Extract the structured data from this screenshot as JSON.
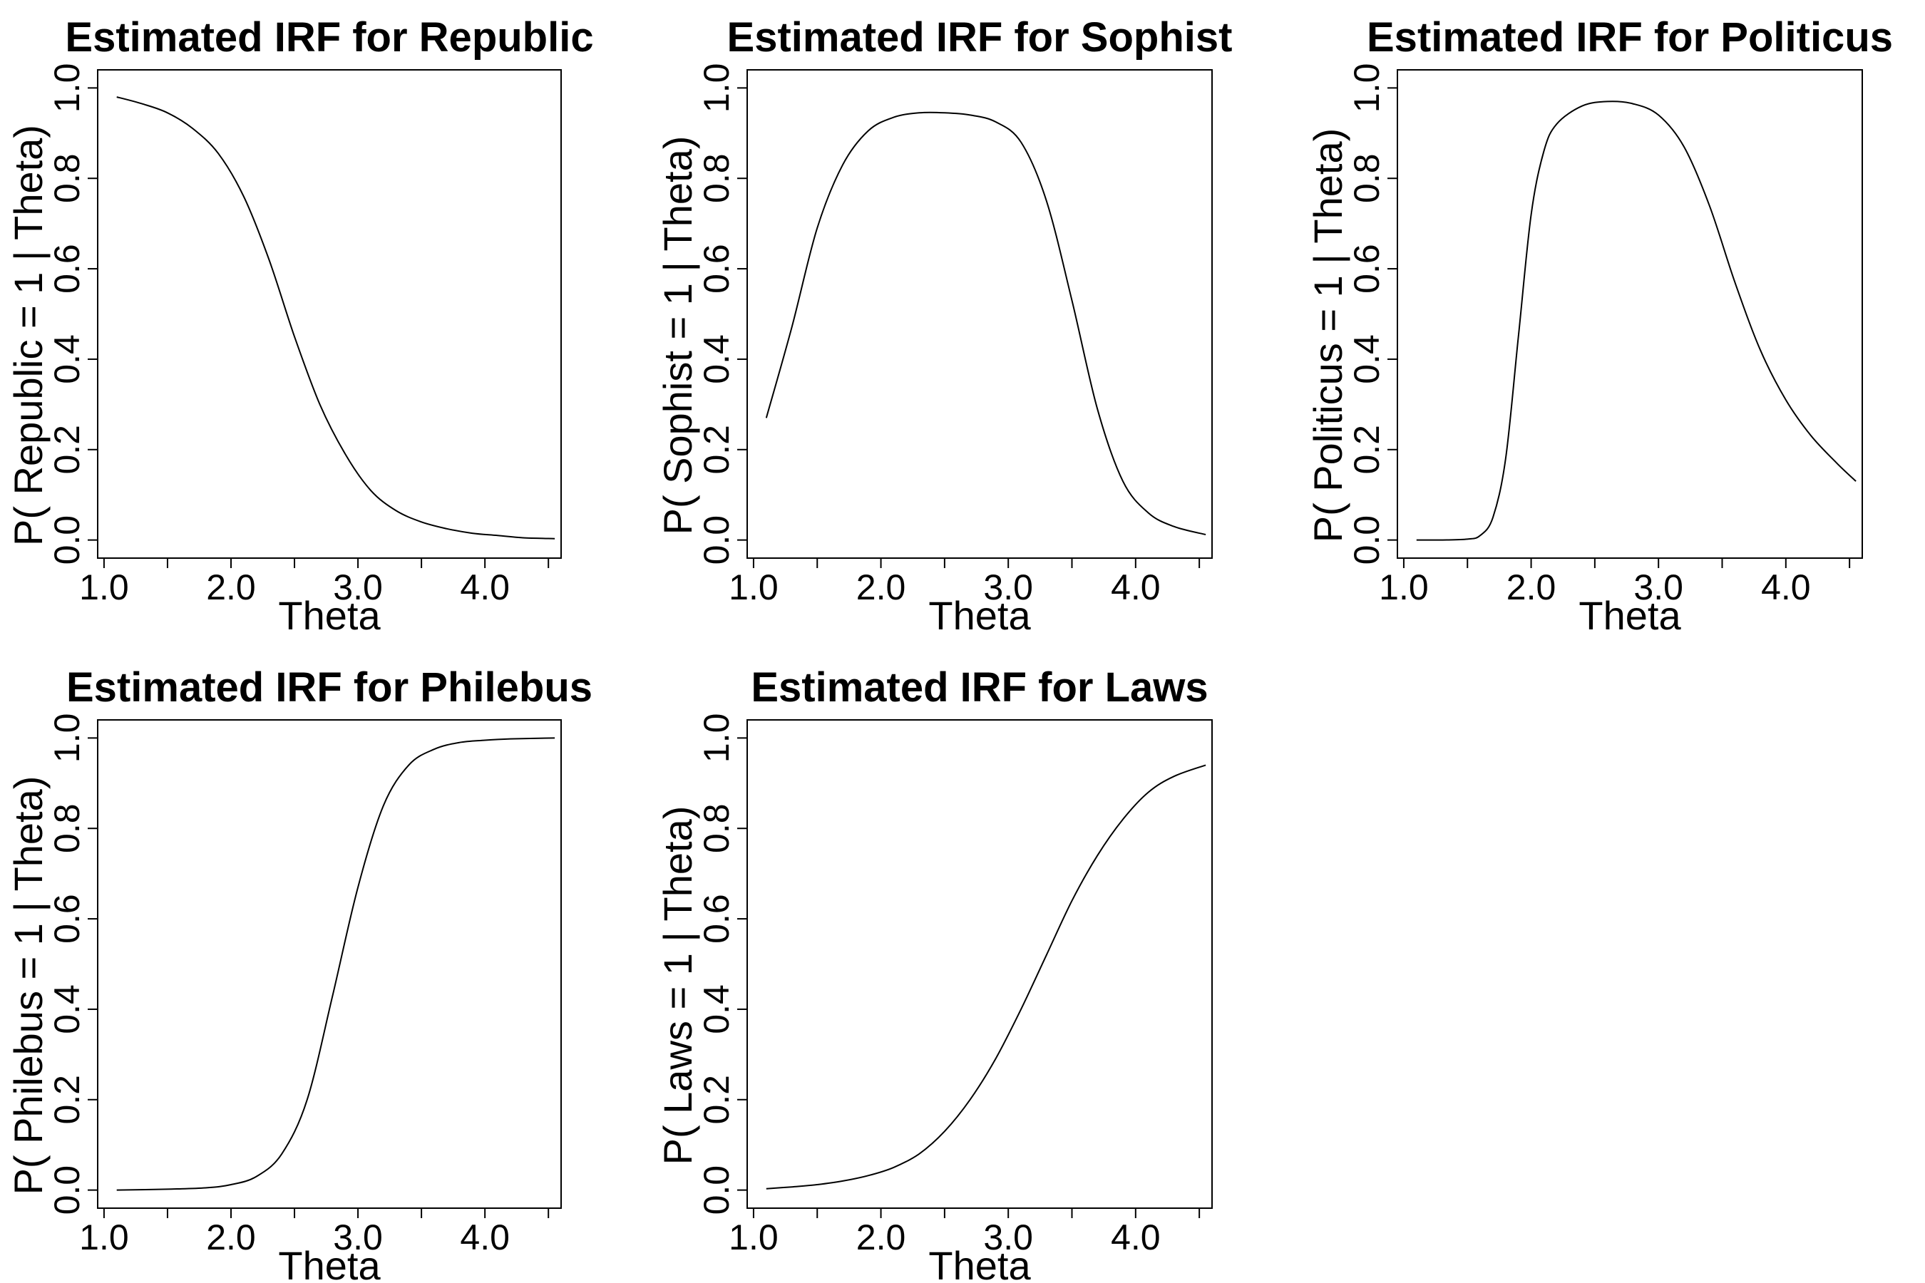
{
  "chart_data": [
    {
      "type": "line",
      "title": "Estimated IRF for Republic",
      "xlabel": "Theta",
      "ylabel": "P( Republic = 1 | Theta)",
      "xlim": [
        0.95,
        4.6
      ],
      "ylim": [
        -0.04,
        1.04
      ],
      "xticks": [
        1.0,
        1.5,
        2.0,
        2.5,
        3.0,
        3.5,
        4.0,
        4.5
      ],
      "xtick_labels": [
        "1.0",
        "",
        "2.0",
        "",
        "3.0",
        "",
        "4.0",
        ""
      ],
      "yticks": [
        0.0,
        0.2,
        0.4,
        0.6,
        0.8,
        1.0
      ],
      "ytick_labels": [
        "0.0",
        "0.2",
        "0.4",
        "0.6",
        "0.8",
        "1.0"
      ],
      "grid": false,
      "series": [
        {
          "x": [
            1.1,
            1.3,
            1.5,
            1.7,
            1.9,
            2.1,
            2.3,
            2.5,
            2.7,
            2.9,
            3.1,
            3.3,
            3.5,
            3.7,
            3.9,
            4.1,
            4.3,
            4.55
          ],
          "values": [
            0.98,
            0.965,
            0.945,
            0.91,
            0.855,
            0.76,
            0.62,
            0.45,
            0.3,
            0.19,
            0.11,
            0.065,
            0.04,
            0.025,
            0.015,
            0.01,
            0.005,
            0.003
          ]
        }
      ]
    },
    {
      "type": "line",
      "title": "Estimated IRF for Sophist",
      "xlabel": "Theta",
      "ylabel": "P( Sophist = 1 | Theta)",
      "xlim": [
        0.95,
        4.6
      ],
      "ylim": [
        -0.04,
        1.04
      ],
      "xticks": [
        1.0,
        1.5,
        2.0,
        2.5,
        3.0,
        3.5,
        4.0,
        4.5
      ],
      "xtick_labels": [
        "1.0",
        "",
        "2.0",
        "",
        "3.0",
        "",
        "4.0",
        ""
      ],
      "yticks": [
        0.0,
        0.2,
        0.4,
        0.6,
        0.8,
        1.0
      ],
      "ytick_labels": [
        "0.0",
        "0.2",
        "0.4",
        "0.6",
        "0.8",
        "1.0"
      ],
      "grid": false,
      "series": [
        {
          "x": [
            1.1,
            1.3,
            1.5,
            1.7,
            1.9,
            2.1,
            2.3,
            2.5,
            2.7,
            2.9,
            3.1,
            3.3,
            3.5,
            3.7,
            3.9,
            4.1,
            4.3,
            4.55
          ],
          "values": [
            0.27,
            0.47,
            0.69,
            0.83,
            0.905,
            0.935,
            0.945,
            0.945,
            0.94,
            0.925,
            0.88,
            0.75,
            0.53,
            0.29,
            0.13,
            0.06,
            0.03,
            0.012
          ]
        }
      ]
    },
    {
      "type": "line",
      "title": "Estimated IRF for Politicus",
      "xlabel": "Theta",
      "ylabel": "P( Politicus = 1 | Theta)",
      "xlim": [
        0.95,
        4.6
      ],
      "ylim": [
        -0.04,
        1.04
      ],
      "xticks": [
        1.0,
        1.5,
        2.0,
        2.5,
        3.0,
        3.5,
        4.0,
        4.5
      ],
      "xtick_labels": [
        "1.0",
        "",
        "2.0",
        "",
        "3.0",
        "",
        "4.0",
        ""
      ],
      "yticks": [
        0.0,
        0.2,
        0.4,
        0.6,
        0.8,
        1.0
      ],
      "ytick_labels": [
        "0.0",
        "0.2",
        "0.4",
        "0.6",
        "0.8",
        "1.0"
      ],
      "grid": false,
      "series": [
        {
          "x": [
            1.1,
            1.3,
            1.5,
            1.6,
            1.7,
            1.8,
            1.9,
            2.0,
            2.1,
            2.2,
            2.4,
            2.6,
            2.8,
            3.0,
            3.2,
            3.4,
            3.6,
            3.8,
            4.0,
            4.2,
            4.4,
            4.55
          ],
          "values": [
            0.0,
            0.0,
            0.002,
            0.01,
            0.05,
            0.18,
            0.45,
            0.72,
            0.86,
            0.92,
            0.96,
            0.97,
            0.965,
            0.94,
            0.87,
            0.74,
            0.57,
            0.42,
            0.31,
            0.23,
            0.17,
            0.13
          ]
        }
      ]
    },
    {
      "type": "line",
      "title": "Estimated IRF for Philebus",
      "xlabel": "Theta",
      "ylabel": "P( Philebus = 1 | Theta)",
      "xlim": [
        0.95,
        4.6
      ],
      "ylim": [
        -0.04,
        1.04
      ],
      "xticks": [
        1.0,
        1.5,
        2.0,
        2.5,
        3.0,
        3.5,
        4.0,
        4.5
      ],
      "xtick_labels": [
        "1.0",
        "",
        "2.0",
        "",
        "3.0",
        "",
        "4.0",
        ""
      ],
      "yticks": [
        0.0,
        0.2,
        0.4,
        0.6,
        0.8,
        1.0
      ],
      "ytick_labels": [
        "0.0",
        "0.2",
        "0.4",
        "0.6",
        "0.8",
        "1.0"
      ],
      "grid": false,
      "series": [
        {
          "x": [
            1.1,
            1.5,
            1.8,
            2.0,
            2.2,
            2.4,
            2.6,
            2.8,
            3.0,
            3.2,
            3.4,
            3.6,
            3.8,
            4.0,
            4.2,
            4.55
          ],
          "values": [
            0.0,
            0.002,
            0.005,
            0.012,
            0.03,
            0.08,
            0.2,
            0.43,
            0.67,
            0.85,
            0.94,
            0.975,
            0.99,
            0.995,
            0.998,
            1.0
          ]
        }
      ]
    },
    {
      "type": "line",
      "title": "Estimated IRF for Laws",
      "xlabel": "Theta",
      "ylabel": "P( Laws = 1 | Theta)",
      "xlim": [
        0.95,
        4.6
      ],
      "ylim": [
        -0.04,
        1.04
      ],
      "xticks": [
        1.0,
        1.5,
        2.0,
        2.5,
        3.0,
        3.5,
        4.0,
        4.5
      ],
      "xtick_labels": [
        "1.0",
        "",
        "2.0",
        "",
        "3.0",
        "",
        "4.0",
        ""
      ],
      "yticks": [
        0.0,
        0.2,
        0.4,
        0.6,
        0.8,
        1.0
      ],
      "ytick_labels": [
        "0.0",
        "0.2",
        "0.4",
        "0.6",
        "0.8",
        "1.0"
      ],
      "grid": false,
      "series": [
        {
          "x": [
            1.1,
            1.3,
            1.5,
            1.7,
            1.9,
            2.1,
            2.3,
            2.5,
            2.7,
            2.9,
            3.1,
            3.3,
            3.5,
            3.7,
            3.9,
            4.1,
            4.3,
            4.55
          ],
          "values": [
            0.003,
            0.007,
            0.012,
            0.02,
            0.032,
            0.05,
            0.08,
            0.13,
            0.2,
            0.29,
            0.4,
            0.52,
            0.64,
            0.74,
            0.82,
            0.88,
            0.915,
            0.94
          ]
        }
      ]
    }
  ]
}
